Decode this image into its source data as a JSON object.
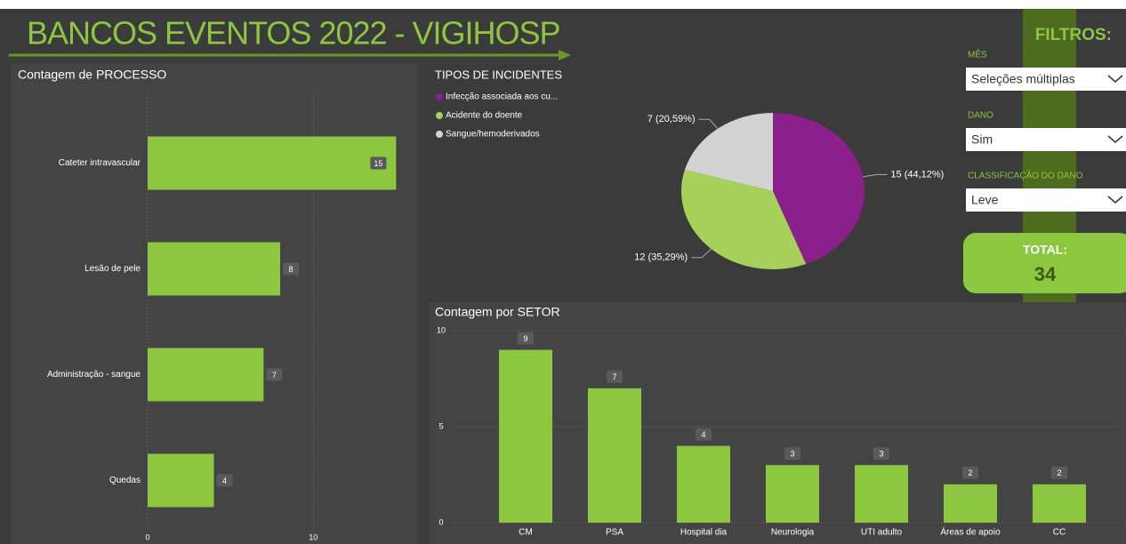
{
  "header": {
    "title": "BANCOS EVENTOS 2022 - VIGIHOSP"
  },
  "filters": {
    "title": "FILTROS:",
    "items": [
      {
        "label": "MÊS",
        "value": "Seleções múltiplas"
      },
      {
        "label": "DANO",
        "value": "Sim"
      },
      {
        "label": "CLASSIFICAÇÃO DO DANO",
        "value": "Leve"
      }
    ]
  },
  "total": {
    "label": "TOTAL:",
    "value": 34
  },
  "chart_data": [
    {
      "type": "hbar",
      "title": "Contagem de PROCESSO",
      "categories": [
        "Cateter intravascular",
        "Lesão de pele",
        "Administração - sangue",
        "Quedas"
      ],
      "values": [
        15,
        8,
        7,
        4
      ],
      "color": "#8dc63f",
      "xlim": [
        0,
        16
      ],
      "xticks": [
        0,
        10
      ],
      "grid": true
    },
    {
      "type": "pie",
      "title": "TIPOS DE INCIDENTES",
      "categories": [
        "Infecção associada aos cu...",
        "Acidente do doente",
        "Sangue/hemoderivados"
      ],
      "values": [
        15,
        12,
        7
      ],
      "value_labels": [
        "15 (44,12%)",
        "12 (35,29%)",
        "7 (20,59%)"
      ],
      "colors": [
        "#8b1f8b",
        "#a6d15a",
        "#d3d3d3"
      ]
    },
    {
      "type": "bar",
      "title": "Contagem por SETOR",
      "categories": [
        "CM",
        "PSA",
        "Hospital dia",
        "Neurologia",
        "UTI adulto",
        "Áreas de apoio",
        "CC"
      ],
      "values": [
        9,
        7,
        4,
        3,
        3,
        2,
        2
      ],
      "color": "#8dc63f",
      "ylim": [
        0,
        10
      ],
      "yticks": [
        0,
        5,
        10
      ],
      "grid": true
    }
  ]
}
